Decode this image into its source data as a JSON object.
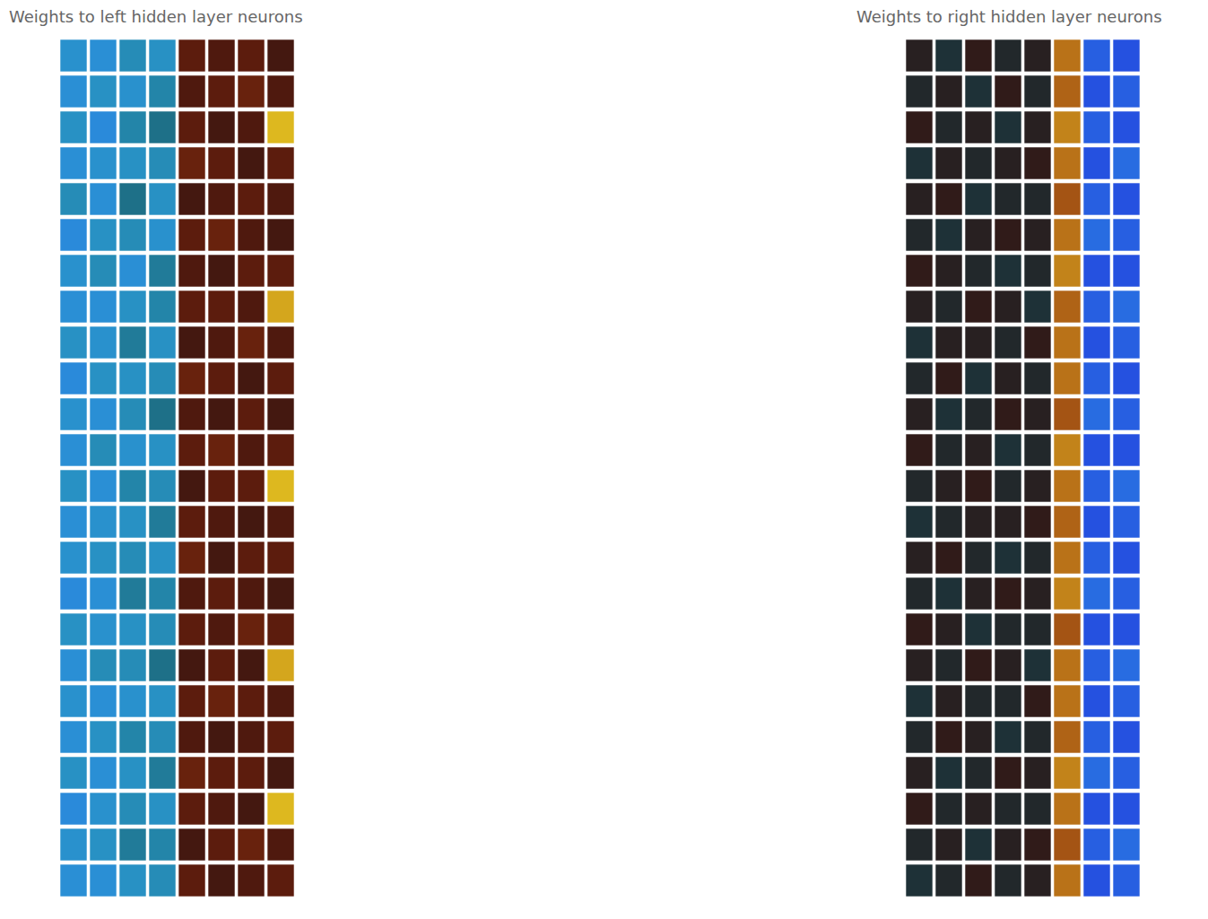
{
  "chart_data": [
    {
      "type": "heatmap",
      "title": "Weights to left hidden layer neurons",
      "tick_labels": false,
      "zlim": [
        -1,
        1
      ],
      "cells": [
        [
          -0.55,
          -0.6,
          -0.45,
          -0.5,
          0.3,
          0.25,
          0.3,
          0.2
        ],
        [
          -0.6,
          -0.5,
          -0.55,
          -0.4,
          0.25,
          0.3,
          0.35,
          0.25
        ],
        [
          -0.5,
          -0.65,
          -0.4,
          -0.3,
          0.3,
          0.2,
          0.25,
          0.9
        ],
        [
          -0.6,
          -0.55,
          -0.5,
          -0.45,
          0.35,
          0.3,
          0.2,
          0.3
        ],
        [
          -0.45,
          -0.6,
          -0.3,
          -0.5,
          0.2,
          0.25,
          0.3,
          0.25
        ],
        [
          -0.65,
          -0.5,
          -0.45,
          -0.55,
          0.3,
          0.35,
          0.25,
          0.2
        ],
        [
          -0.55,
          -0.45,
          -0.6,
          -0.35,
          0.25,
          0.2,
          0.3,
          0.3
        ],
        [
          -0.6,
          -0.6,
          -0.5,
          -0.4,
          0.3,
          0.3,
          0.25,
          0.85
        ],
        [
          -0.5,
          -0.55,
          -0.35,
          -0.5,
          0.2,
          0.25,
          0.35,
          0.25
        ],
        [
          -0.65,
          -0.5,
          -0.5,
          -0.45,
          0.35,
          0.3,
          0.2,
          0.3
        ],
        [
          -0.55,
          -0.6,
          -0.45,
          -0.3,
          0.25,
          0.2,
          0.3,
          0.2
        ],
        [
          -0.6,
          -0.45,
          -0.55,
          -0.5,
          0.3,
          0.35,
          0.25,
          0.3
        ],
        [
          -0.5,
          -0.6,
          -0.4,
          -0.45,
          0.2,
          0.3,
          0.3,
          0.9
        ],
        [
          -0.6,
          -0.55,
          -0.5,
          -0.35,
          0.3,
          0.25,
          0.2,
          0.25
        ],
        [
          -0.55,
          -0.5,
          -0.45,
          -0.5,
          0.35,
          0.2,
          0.3,
          0.3
        ],
        [
          -0.65,
          -0.6,
          -0.35,
          -0.4,
          0.25,
          0.3,
          0.25,
          0.2
        ],
        [
          -0.5,
          -0.55,
          -0.5,
          -0.45,
          0.3,
          0.25,
          0.35,
          0.3
        ],
        [
          -0.6,
          -0.45,
          -0.45,
          -0.3,
          0.2,
          0.3,
          0.2,
          0.85
        ],
        [
          -0.55,
          -0.6,
          -0.55,
          -0.5,
          0.3,
          0.35,
          0.3,
          0.25
        ],
        [
          -0.6,
          -0.5,
          -0.4,
          -0.45,
          0.25,
          0.2,
          0.25,
          0.3
        ],
        [
          -0.5,
          -0.6,
          -0.5,
          -0.35,
          0.35,
          0.3,
          0.3,
          0.2
        ],
        [
          -0.65,
          -0.55,
          -0.45,
          -0.5,
          0.3,
          0.25,
          0.2,
          0.9
        ],
        [
          -0.55,
          -0.5,
          -0.35,
          -0.4,
          0.2,
          0.3,
          0.35,
          0.25
        ],
        [
          -0.6,
          -0.6,
          -0.5,
          -0.45,
          0.3,
          0.2,
          0.25,
          0.3
        ]
      ]
    },
    {
      "type": "heatmap",
      "title": "Weights to right hidden layer neurons",
      "tick_labels": false,
      "zlim": [
        -1,
        1
      ],
      "cells": [
        [
          0.05,
          -0.05,
          0.1,
          0,
          0.05,
          0.7,
          -0.85,
          -0.9
        ],
        [
          0,
          0.05,
          -0.05,
          0.1,
          0,
          0.65,
          -0.9,
          -0.85
        ],
        [
          0.1,
          0,
          0.05,
          -0.05,
          0.05,
          0.75,
          -0.85,
          -0.9
        ],
        [
          -0.05,
          0.05,
          0,
          0.05,
          0.1,
          0.7,
          -0.9,
          -0.8
        ],
        [
          0.05,
          0.1,
          -0.05,
          0,
          0,
          0.6,
          -0.85,
          -0.9
        ],
        [
          0,
          -0.05,
          0.05,
          0.1,
          0.05,
          0.7,
          -0.8,
          -0.85
        ],
        [
          0.1,
          0.05,
          0,
          -0.05,
          0,
          0.75,
          -0.9,
          -0.9
        ],
        [
          0.05,
          0,
          0.1,
          0.05,
          -0.05,
          0.65,
          -0.85,
          -0.8
        ],
        [
          -0.05,
          0.05,
          0.05,
          0,
          0.1,
          0.7,
          -0.9,
          -0.85
        ],
        [
          0,
          0.1,
          -0.05,
          0.05,
          0,
          0.7,
          -0.85,
          -0.9
        ],
        [
          0.05,
          -0.05,
          0,
          0.1,
          0.05,
          0.6,
          -0.8,
          -0.85
        ],
        [
          0.1,
          0,
          0.05,
          -0.05,
          0,
          0.75,
          -0.9,
          -0.9
        ],
        [
          0,
          0.05,
          0.1,
          0,
          0.05,
          0.7,
          -0.85,
          -0.8
        ],
        [
          -0.05,
          0,
          0.05,
          0.05,
          0.1,
          0.65,
          -0.9,
          -0.85
        ],
        [
          0.05,
          0.1,
          0,
          -0.05,
          0,
          0.7,
          -0.85,
          -0.9
        ],
        [
          0,
          -0.05,
          0.05,
          0.1,
          0.05,
          0.75,
          -0.8,
          -0.85
        ],
        [
          0.1,
          0.05,
          -0.05,
          0,
          0,
          0.6,
          -0.9,
          -0.9
        ],
        [
          0.05,
          0,
          0.1,
          0.05,
          -0.05,
          0.7,
          -0.85,
          -0.8
        ],
        [
          -0.05,
          0.05,
          0,
          0,
          0.1,
          0.7,
          -0.9,
          -0.85
        ],
        [
          0,
          0.1,
          0.05,
          -0.05,
          0,
          0.65,
          -0.85,
          -0.9
        ],
        [
          0.05,
          -0.05,
          0,
          0.1,
          0.05,
          0.75,
          -0.8,
          -0.85
        ],
        [
          0.1,
          0,
          0.05,
          0,
          0,
          0.7,
          -0.9,
          -0.9
        ],
        [
          0,
          0.05,
          -0.05,
          0.05,
          0.1,
          0.6,
          -0.85,
          -0.8
        ],
        [
          -0.05,
          0,
          0.1,
          0,
          0.05,
          0.7,
          -0.9,
          -0.85
        ]
      ]
    }
  ]
}
